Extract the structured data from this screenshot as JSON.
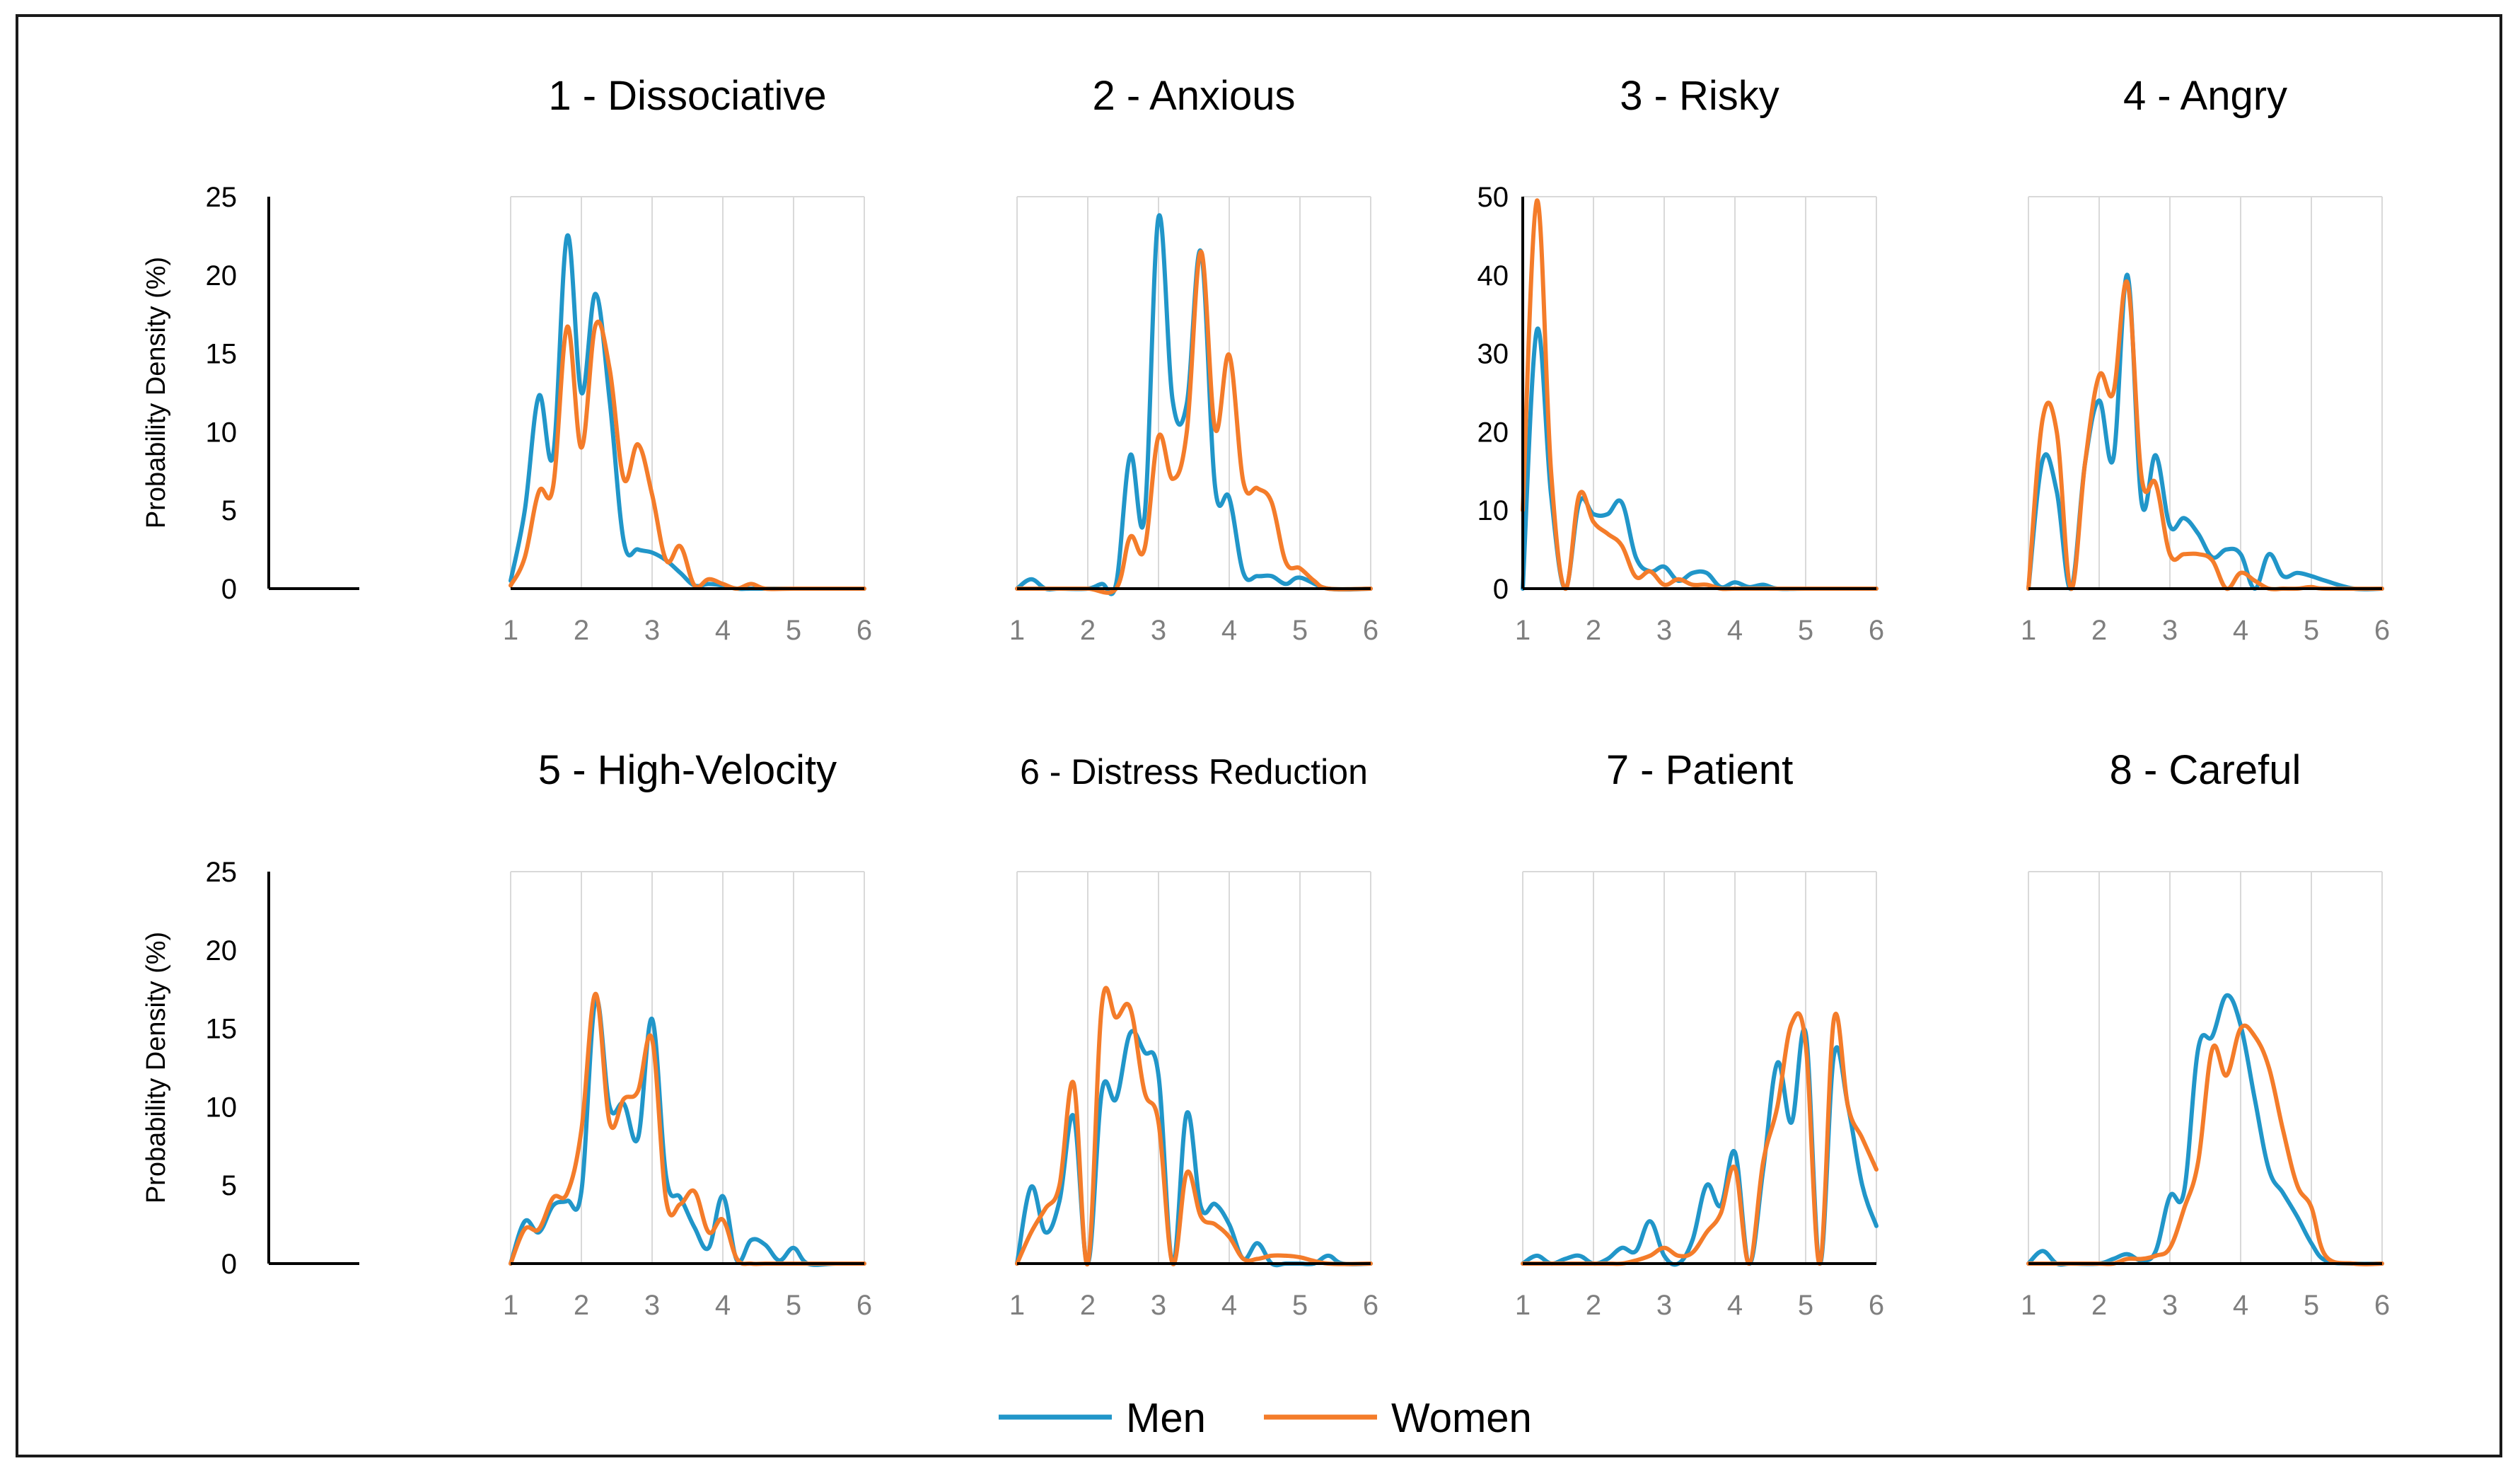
{
  "colors": {
    "men": "#2196c9",
    "women": "#f47c2a",
    "grid": "#d9d9d9",
    "axis": "#000000"
  },
  "legend": {
    "men_label": "Men",
    "women_label": "Women"
  },
  "chart_data": [
    {
      "type": "line",
      "title": "1 - Dissociative",
      "ylabel": "Probability Density (%)",
      "xlim": [
        1,
        6
      ],
      "ylim": [
        0,
        25
      ],
      "xticks": [
        1,
        2,
        3,
        4,
        5,
        6
      ],
      "yticks": [
        0,
        5,
        10,
        15,
        20,
        25
      ],
      "series": [
        {
          "name": "Men",
          "x": [
            1,
            1.2,
            1.4,
            1.6,
            1.8,
            2,
            2.2,
            2.4,
            2.6,
            2.8,
            3,
            3.2,
            3.4,
            3.6,
            3.8,
            4,
            4.2,
            4.4,
            4.6,
            5,
            5.5,
            6
          ],
          "values": [
            0.5,
            5,
            12.3,
            8.5,
            22.5,
            12.5,
            18.8,
            12,
            3,
            2.5,
            2.3,
            1.8,
            1,
            0.2,
            0.3,
            0.2,
            0,
            0,
            0,
            0,
            0,
            0
          ]
        },
        {
          "name": "Women",
          "x": [
            1,
            1.2,
            1.4,
            1.6,
            1.8,
            2,
            2.2,
            2.4,
            2.6,
            2.8,
            3,
            3.2,
            3.4,
            3.6,
            3.8,
            4,
            4.2,
            4.4,
            4.6,
            5,
            5.5,
            6
          ],
          "values": [
            0.2,
            2,
            6.2,
            6.5,
            16.7,
            9,
            16.8,
            14,
            7,
            9.2,
            6,
            1.8,
            2.7,
            0.2,
            0.6,
            0.3,
            0,
            0.3,
            0,
            0,
            0,
            0
          ]
        }
      ]
    },
    {
      "type": "line",
      "title": "2 - Anxious",
      "xlim": [
        1,
        6
      ],
      "ylim": [
        0,
        25
      ],
      "xticks": [
        1,
        2,
        3,
        4,
        5,
        6
      ],
      "yticks": [
        0,
        5,
        10,
        15,
        20,
        25
      ],
      "series": [
        {
          "name": "Men",
          "x": [
            1,
            1.2,
            1.4,
            1.6,
            2,
            2.2,
            2.4,
            2.6,
            2.8,
            3,
            3.2,
            3.4,
            3.6,
            3.8,
            4,
            4.2,
            4.4,
            4.6,
            4.8,
            5,
            5.4,
            6
          ],
          "values": [
            0,
            0.6,
            0,
            0,
            0,
            0.3,
            0.3,
            8.5,
            4.5,
            23.7,
            12,
            11.8,
            21.5,
            6.5,
            5.8,
            1,
            0.8,
            0.8,
            0.3,
            0.7,
            0,
            0
          ]
        },
        {
          "name": "Women",
          "x": [
            1,
            1.6,
            2,
            2.4,
            2.6,
            2.8,
            3,
            3.2,
            3.4,
            3.6,
            3.8,
            4,
            4.2,
            4.4,
            4.6,
            4.8,
            5,
            5.2,
            5.4,
            6
          ],
          "values": [
            0,
            0,
            0,
            0,
            3.3,
            2.5,
            9.7,
            7,
            10,
            21.5,
            10.2,
            14.9,
            6.8,
            6.4,
            5.5,
            1.7,
            1.3,
            0.5,
            0,
            0
          ]
        }
      ]
    },
    {
      "type": "line",
      "title": "3 - Risky",
      "xlim": [
        1,
        6
      ],
      "ylim": [
        0,
        50
      ],
      "xticks": [
        1,
        2,
        3,
        4,
        5,
        6
      ],
      "yticks": [
        0,
        10,
        20,
        30,
        40,
        50
      ],
      "series": [
        {
          "name": "Men",
          "x": [
            1,
            1.2,
            1.4,
            1.6,
            1.8,
            2,
            2.2,
            2.4,
            2.6,
            2.8,
            3,
            3.2,
            3.4,
            3.6,
            3.8,
            4,
            4.2,
            4.4,
            4.6,
            5,
            6
          ],
          "values": [
            0,
            33,
            12,
            0,
            11,
            9.5,
            9.5,
            11,
            4,
            2.2,
            2.8,
            1,
            2,
            2,
            0.2,
            0.8,
            0.2,
            0.5,
            0,
            0,
            0
          ]
        },
        {
          "name": "Women",
          "x": [
            1,
            1.2,
            1.4,
            1.6,
            1.8,
            2,
            2.2,
            2.4,
            2.6,
            2.8,
            3,
            3.2,
            3.4,
            3.6,
            3.8,
            4,
            4.5,
            5,
            6
          ],
          "values": [
            10,
            49.5,
            15,
            0,
            12,
            8.5,
            7,
            5.5,
            1.5,
            2.2,
            0.5,
            1.2,
            0.5,
            0.5,
            0,
            0,
            0,
            0,
            0
          ]
        }
      ]
    },
    {
      "type": "line",
      "title": "4 - Angry",
      "xlim": [
        1,
        6
      ],
      "ylim": [
        0,
        25
      ],
      "xticks": [
        1,
        2,
        3,
        4,
        5,
        6
      ],
      "yticks": [
        0,
        5,
        10,
        15,
        20,
        25
      ],
      "series": [
        {
          "name": "Men",
          "x": [
            1,
            1.2,
            1.4,
            1.6,
            1.8,
            2,
            2.2,
            2.4,
            2.6,
            2.8,
            3,
            3.2,
            3.4,
            3.6,
            3.8,
            4,
            4.2,
            4.4,
            4.6,
            4.8,
            5,
            5.2,
            5.6,
            6
          ],
          "values": [
            0,
            8.2,
            6.2,
            0,
            8,
            12,
            8.3,
            20,
            5.5,
            8.5,
            4,
            4.5,
            3.5,
            2,
            2.5,
            2.2,
            0,
            2.2,
            0.8,
            1,
            0.8,
            0.5,
            0,
            0
          ]
        },
        {
          "name": "Women",
          "x": [
            1,
            1.2,
            1.4,
            1.6,
            1.8,
            2,
            2.2,
            2.4,
            2.6,
            2.8,
            3,
            3.2,
            3.4,
            3.6,
            3.8,
            4,
            4.2,
            4.4,
            4.6,
            4.8,
            5,
            5.2,
            6
          ],
          "values": [
            0,
            10.8,
            10,
            0,
            8,
            13.6,
            12.5,
            19.5,
            7.1,
            6.7,
            2.2,
            2.2,
            2.2,
            1.8,
            0,
            1,
            0.5,
            0,
            0,
            0,
            0.1,
            0,
            0
          ]
        }
      ]
    },
    {
      "type": "line",
      "title": "5 - High-Velocity",
      "ylabel": "Probability Density (%)",
      "xlim": [
        1,
        6
      ],
      "ylim": [
        0,
        25
      ],
      "xticks": [
        1,
        2,
        3,
        4,
        5,
        6
      ],
      "yticks": [
        0,
        5,
        10,
        15,
        20,
        25
      ],
      "series": [
        {
          "name": "Men",
          "x": [
            1,
            1.2,
            1.4,
            1.6,
            1.8,
            2,
            2.2,
            2.4,
            2.6,
            2.8,
            3,
            3.2,
            3.4,
            3.6,
            3.8,
            4,
            4.2,
            4.4,
            4.6,
            4.8,
            5,
            5.2,
            5.6,
            6
          ],
          "values": [
            0,
            2.7,
            2,
            3.7,
            4,
            4.6,
            16.8,
            10,
            10.2,
            8,
            15.6,
            5.5,
            4.2,
            2.3,
            1,
            4.3,
            0.2,
            1.5,
            1.2,
            0.2,
            1,
            0,
            0,
            0
          ]
        },
        {
          "name": "Women",
          "x": [
            1,
            1.2,
            1.4,
            1.6,
            1.8,
            2,
            2.2,
            2.4,
            2.6,
            2.8,
            3,
            3.2,
            3.4,
            3.6,
            3.8,
            4,
            4.2,
            4.4,
            4.6,
            4.8,
            5,
            5.4,
            6
          ],
          "values": [
            0,
            2.2,
            2.2,
            4.2,
            4.5,
            8.5,
            17.2,
            9,
            10.5,
            11,
            14.3,
            4,
            3.8,
            4.6,
            2,
            2.8,
            0.3,
            0,
            0,
            0,
            0,
            0,
            0
          ]
        }
      ]
    },
    {
      "type": "line",
      "title": "6 - Distress Reduction",
      "xlim": [
        1,
        6
      ],
      "ylim": [
        0,
        25
      ],
      "xticks": [
        1,
        2,
        3,
        4,
        5,
        6
      ],
      "yticks": [
        0,
        5,
        10,
        15,
        20,
        25
      ],
      "series": [
        {
          "name": "Men",
          "x": [
            1,
            1.2,
            1.4,
            1.6,
            1.8,
            2,
            2.2,
            2.4,
            2.6,
            2.8,
            3,
            3.2,
            3.4,
            3.6,
            3.8,
            4,
            4.2,
            4.4,
            4.6,
            4.8,
            5,
            5.2,
            5.4,
            5.6,
            6
          ],
          "values": [
            0,
            4.9,
            2,
            4,
            9.4,
            0,
            11,
            10.5,
            14.7,
            13.5,
            12,
            0,
            9.6,
            3.6,
            3.8,
            2.5,
            0.3,
            1.3,
            0,
            0,
            0,
            0,
            0.5,
            0,
            0
          ]
        },
        {
          "name": "Women",
          "x": [
            1,
            1.2,
            1.4,
            1.6,
            1.8,
            2,
            2.2,
            2.4,
            2.6,
            2.8,
            3,
            3.2,
            3.4,
            3.6,
            3.8,
            4,
            4.2,
            4.4,
            4.6,
            4.8,
            5,
            5.4,
            6
          ],
          "values": [
            0,
            2,
            3.5,
            5,
            11.5,
            0,
            16.5,
            15.7,
            16.3,
            11,
            9,
            0,
            5.8,
            3,
            2.5,
            1.7,
            0.3,
            0.3,
            0.5,
            0.5,
            0.4,
            0,
            0
          ]
        }
      ]
    },
    {
      "type": "line",
      "title": "7 - Patient",
      "xlim": [
        1,
        6
      ],
      "ylim": [
        0,
        25
      ],
      "xticks": [
        1,
        2,
        3,
        4,
        5,
        6
      ],
      "yticks": [
        0,
        5,
        10,
        15,
        20,
        25
      ],
      "series": [
        {
          "name": "Men",
          "x": [
            1,
            1.2,
            1.4,
            1.6,
            1.8,
            2,
            2.2,
            2.4,
            2.6,
            2.8,
            3,
            3.2,
            3.4,
            3.6,
            3.8,
            4,
            4.2,
            4.4,
            4.6,
            4.8,
            5,
            5.2,
            5.4,
            5.6,
            5.8,
            6
          ],
          "values": [
            0,
            0.5,
            0,
            0.3,
            0.5,
            0,
            0.3,
            1,
            0.8,
            2.7,
            0.5,
            0,
            1.5,
            5,
            3.7,
            7.1,
            0,
            6,
            12.8,
            9,
            14.7,
            0,
            13.3,
            10,
            5,
            2.4
          ]
        },
        {
          "name": "Women",
          "x": [
            1,
            1.6,
            2,
            2.2,
            2.4,
            2.6,
            2.8,
            3,
            3.2,
            3.4,
            3.6,
            3.8,
            4,
            4.2,
            4.4,
            4.6,
            4.8,
            5,
            5.2,
            5.4,
            5.6,
            5.8,
            6
          ],
          "values": [
            0,
            0,
            0,
            0,
            0,
            0.2,
            0.5,
            1,
            0.5,
            0.7,
            2,
            3.2,
            6.1,
            0,
            6.5,
            10,
            15.3,
            14,
            0,
            15.6,
            10,
            8,
            6
          ]
        }
      ]
    },
    {
      "type": "line",
      "title": "8 - Careful",
      "xlim": [
        1,
        6
      ],
      "ylim": [
        0,
        25
      ],
      "xticks": [
        1,
        2,
        3,
        4,
        5,
        6
      ],
      "yticks": [
        0,
        5,
        10,
        15,
        20,
        25
      ],
      "series": [
        {
          "name": "Men",
          "x": [
            1,
            1.2,
            1.4,
            1.6,
            2,
            2.2,
            2.4,
            2.6,
            2.8,
            3,
            3.2,
            3.4,
            3.6,
            3.8,
            4,
            4.2,
            4.4,
            4.6,
            4.8,
            5,
            5.2,
            5.6,
            6
          ],
          "values": [
            0,
            0.8,
            0,
            0,
            0,
            0.3,
            0.6,
            0.2,
            0.8,
            4.3,
            4.6,
            13.7,
            14.5,
            17.1,
            15.2,
            10.5,
            6,
            4.5,
            3,
            1.3,
            0.2,
            0,
            0
          ]
        },
        {
          "name": "Women",
          "x": [
            1,
            1.6,
            2,
            2.2,
            2.4,
            2.6,
            2.8,
            3,
            3.2,
            3.4,
            3.6,
            3.8,
            4,
            4.2,
            4.4,
            4.6,
            4.8,
            5,
            5.2,
            5.6,
            6
          ],
          "values": [
            0,
            0,
            0,
            0,
            0.3,
            0.3,
            0.5,
            1,
            3.5,
            6.5,
            13.7,
            12,
            15,
            14.5,
            12.5,
            8.5,
            5,
            3.6,
            0.5,
            0,
            0
          ]
        }
      ]
    }
  ]
}
